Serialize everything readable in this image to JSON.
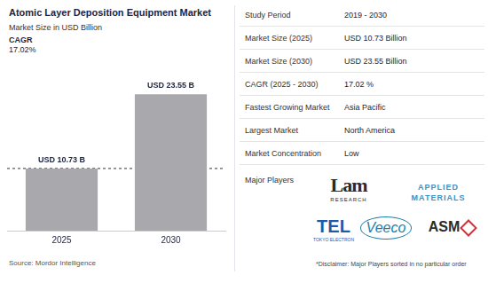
{
  "chart_data": {
    "type": "bar",
    "title": "Atomic Layer Deposition Equipment Market",
    "subtitle": "Market Size in USD Billion",
    "annotations": [
      "CAGR",
      "17.02%"
    ],
    "categories": [
      "2025",
      "2030"
    ],
    "values": [
      10.73,
      23.55
    ],
    "value_labels": [
      "USD 10.73 B",
      "USD 23.55 B"
    ],
    "data_labels": true,
    "color": "#a8a8ad",
    "ylim": [
      0,
      30
    ],
    "yticks": [],
    "tick_labels": "x",
    "grid": false
  },
  "source": "Source: Mordor Intelligence",
  "summary": [
    {
      "label": "Study Period",
      "value": "2019 - 2030"
    },
    {
      "label": "Market Size (2025)",
      "value": "USD 10.73 Billion"
    },
    {
      "label": "Market Size (2030)",
      "value": "USD 23.55 Billion"
    },
    {
      "label": "CAGR (2025 - 2030)",
      "value": "17.02 %"
    },
    {
      "label": "Fastest Growing Market",
      "value": "Asia Pacific"
    },
    {
      "label": "Largest Market",
      "value": "North America"
    },
    {
      "label": "Market Concentration",
      "value": "Low"
    }
  ],
  "major_players_label": "Major Players",
  "major_players": [
    [
      "Lam",
      "RESEARCH"
    ],
    [
      "APPLIED",
      "MATERIALS"
    ],
    [
      "TEL",
      "TOKYO ELECTRON"
    ],
    [
      "Veeco"
    ],
    [
      "ASM"
    ]
  ],
  "disclaimer": "*Disclaimer: Major Players sorted in no particular order"
}
